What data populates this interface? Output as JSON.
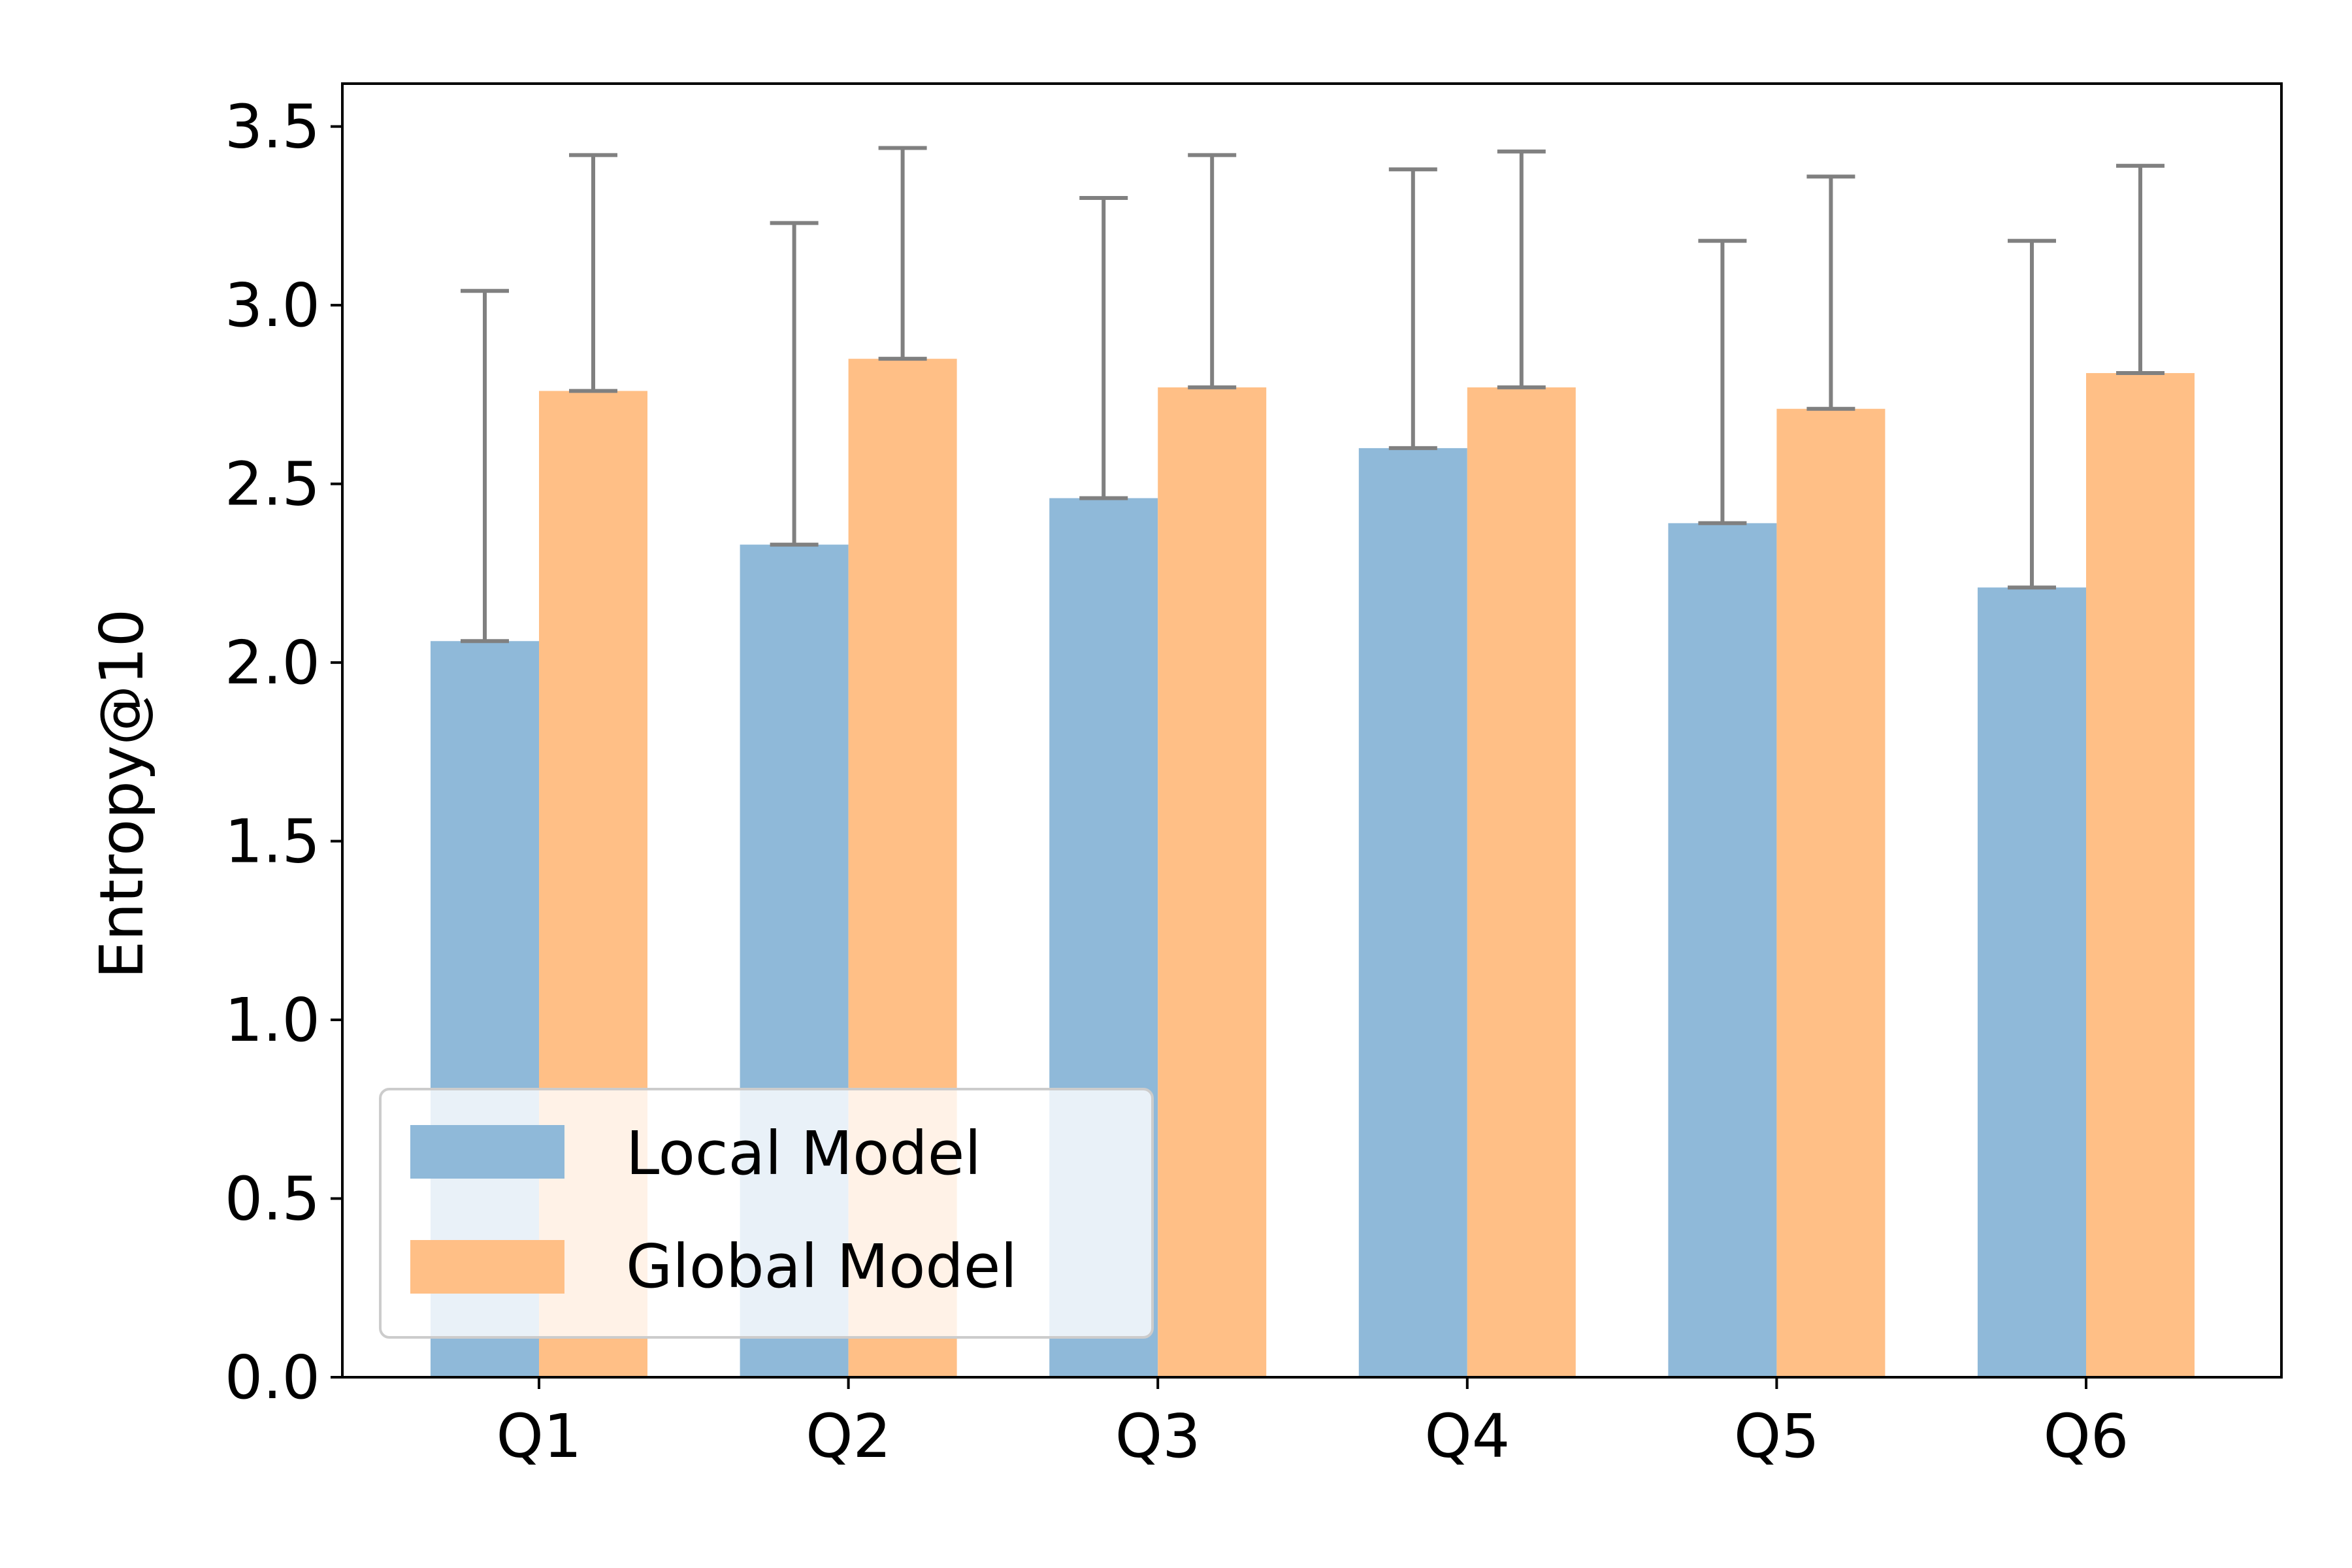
{
  "chart_data": {
    "type": "bar",
    "title": "",
    "xlabel": "",
    "ylabel": "Entropy@10",
    "categories": [
      "Q1",
      "Q2",
      "Q3",
      "Q4",
      "Q5",
      "Q6"
    ],
    "ylim": [
      0,
      3.62
    ],
    "yticks": [
      "0.0",
      "0.5",
      "1.0",
      "1.5",
      "2.0",
      "2.5",
      "3.0",
      "3.5"
    ],
    "grid": false,
    "legend_position": "lower-left",
    "series": [
      {
        "name": "Local Model",
        "color": "#8fb9d9",
        "values": [
          2.06,
          2.33,
          2.46,
          2.6,
          2.39,
          2.21
        ],
        "error": [
          0.98,
          0.9,
          0.84,
          0.78,
          0.79,
          0.97
        ]
      },
      {
        "name": "Global Model",
        "color": "#ffbf86",
        "values": [
          2.76,
          2.85,
          2.77,
          2.77,
          2.71,
          2.81
        ],
        "error": [
          0.66,
          0.59,
          0.65,
          0.66,
          0.65,
          0.58
        ]
      }
    ],
    "error_bar_color": "#808080"
  }
}
